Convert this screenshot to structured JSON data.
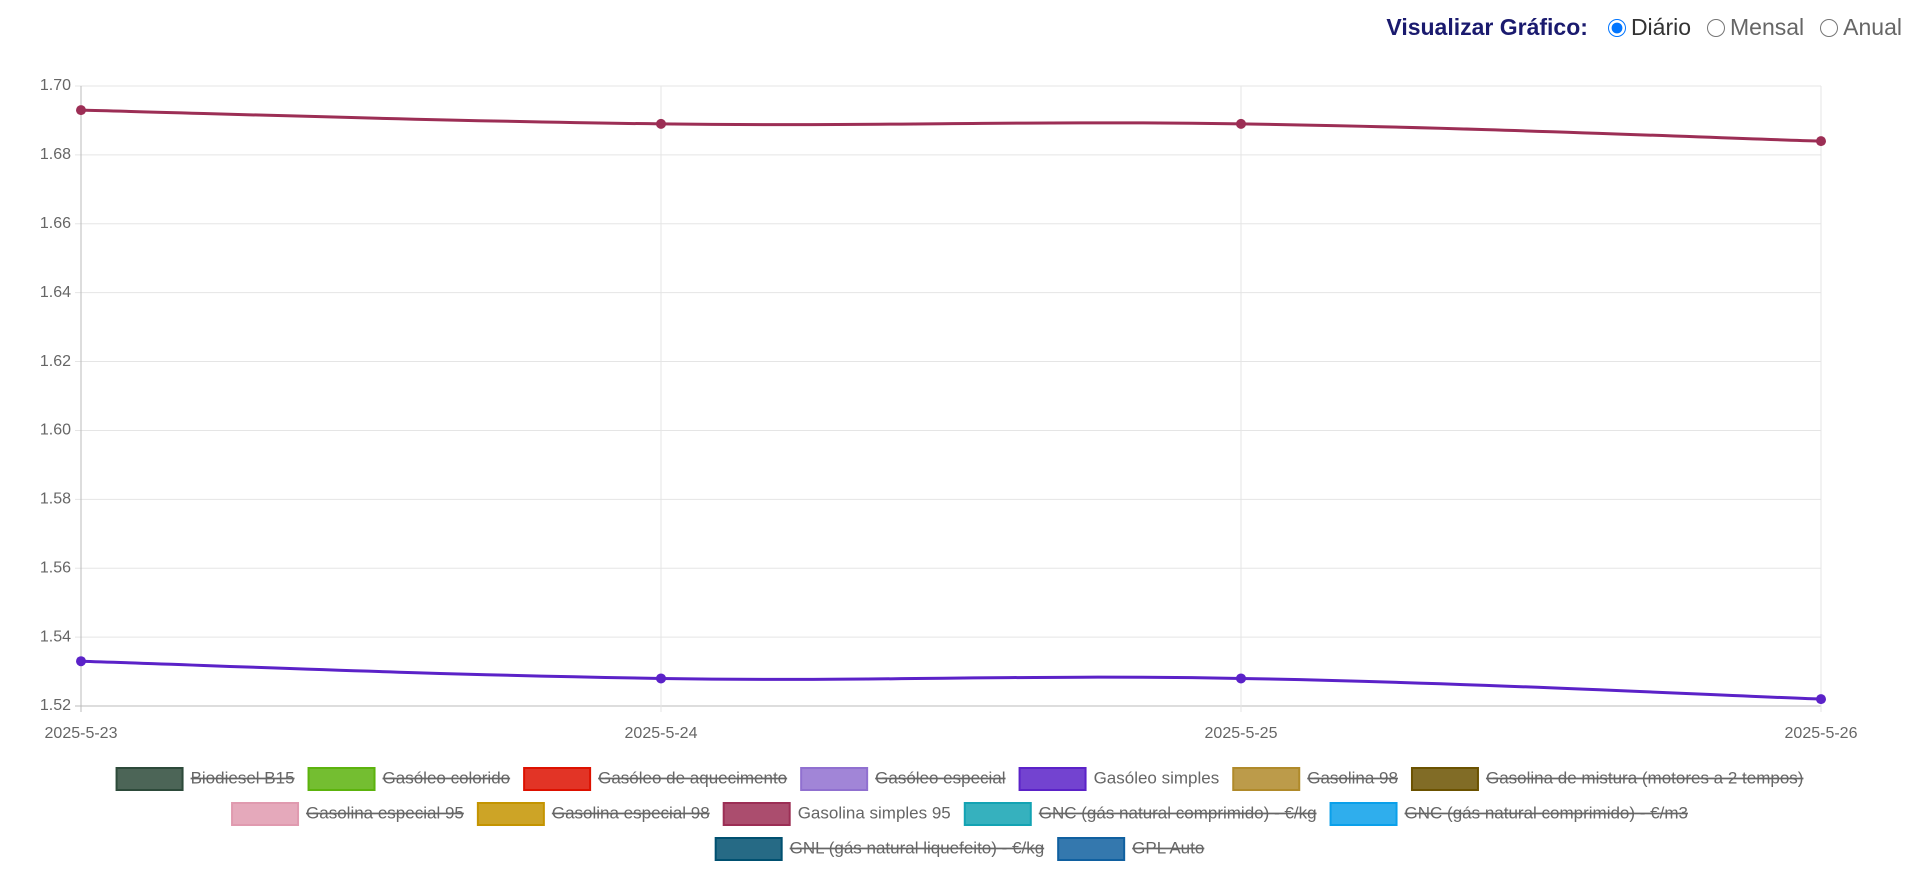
{
  "controls": {
    "label": "Visualizar Gráfico:",
    "options": [
      "Diário",
      "Mensal",
      "Anual"
    ],
    "selected": "Diário"
  },
  "chart_data": {
    "type": "line",
    "categories": [
      "2025-5-23",
      "2025-5-24",
      "2025-5-25",
      "2025-5-26"
    ],
    "ylim": [
      1.52,
      1.7
    ],
    "yticks": [
      1.52,
      1.54,
      1.56,
      1.58,
      {
        "value": 1.6,
        "label": "1.60"
      },
      1.62,
      1.64,
      1.66,
      1.68,
      {
        "value": 1.7,
        "label": "1.70"
      }
    ],
    "grid": true,
    "series": [
      {
        "name": "Biodiesel B15",
        "color": "#2d4a3a",
        "hidden": true
      },
      {
        "name": "Gasóleo colorido",
        "color": "#5cb30d",
        "hidden": true
      },
      {
        "name": "Gasóleo de aquecimento",
        "color": "#dd1100",
        "hidden": true
      },
      {
        "name": "Gasóleo especial",
        "color": "#9070d0",
        "hidden": true
      },
      {
        "name": "Gasóleo simples",
        "color": "#5b22c8",
        "values": [
          1.533,
          1.528,
          1.528,
          1.522
        ]
      },
      {
        "name": "Gasolina 98",
        "color": "#b08a2a",
        "hidden": true
      },
      {
        "name": "Gasolina de mistura (motores a 2 tempos)",
        "color": "#6b5200",
        "hidden": true
      },
      {
        "name": "Gasolina especial 95",
        "color": "#e09aaf",
        "hidden": true
      },
      {
        "name": "Gasolina especial 98",
        "color": "#c49400",
        "hidden": true
      },
      {
        "name": "Gasolina simples 95",
        "color": "#9c2e55",
        "values": [
          1.693,
          1.689,
          1.689,
          1.684
        ]
      },
      {
        "name": "GNC (gás natural comprimido) - €/kg",
        "color": "#13a3b3",
        "hidden": true
      },
      {
        "name": "GNC (gás natural comprimido) - €/m3",
        "color": "#0aa0ea",
        "hidden": true
      },
      {
        "name": "GNL (gás natural liquefeito) - €/kg",
        "color": "#005070",
        "hidden": true
      },
      {
        "name": "GPL Auto",
        "color": "#1060a0",
        "hidden": true
      }
    ]
  }
}
